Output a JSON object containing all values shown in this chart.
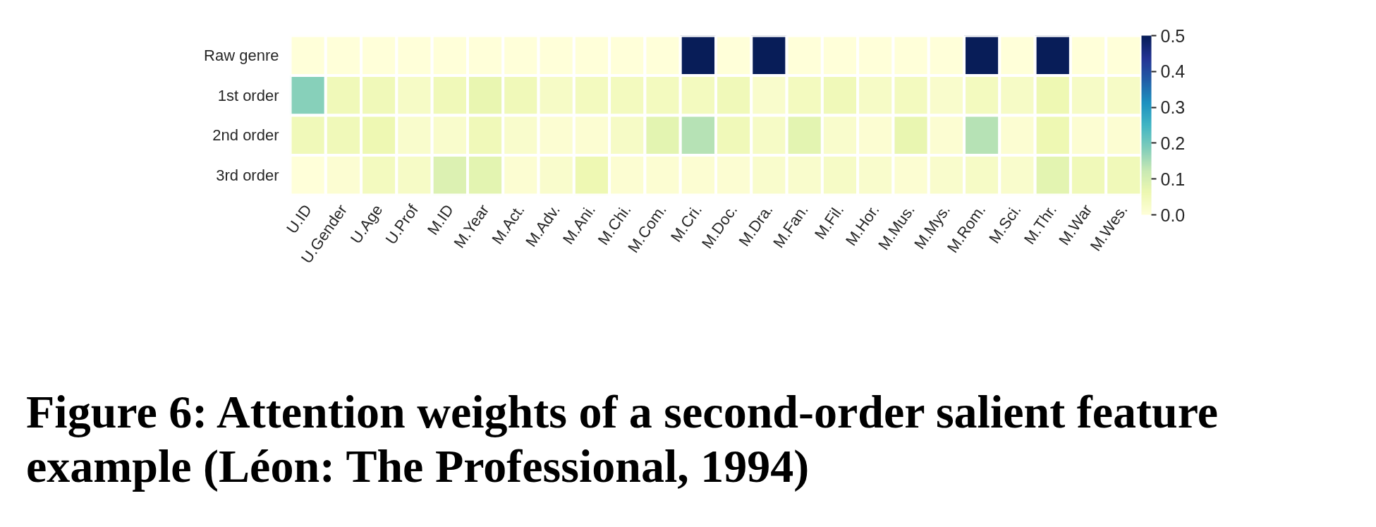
{
  "chart_data": {
    "type": "heatmap",
    "categories": [
      "U.ID",
      "U.Gender",
      "U.Age",
      "U.Prof",
      "M.ID",
      "M.Year",
      "M.Act.",
      "M.Adv.",
      "M.Ani.",
      "M.Chi.",
      "M.Com.",
      "M.Cri.",
      "M.Doc.",
      "M.Dra.",
      "M.Fan.",
      "M.Fil.",
      "M.Hor.",
      "M.Mus.",
      "M.Mys.",
      "M.Rom.",
      "M.Sci.",
      "M.Thr.",
      "M.War",
      "M.Wes."
    ],
    "y_categories": [
      "Raw genre",
      "1st order",
      "2nd order",
      "3rd order"
    ],
    "cells": [
      [
        0,
        0,
        0,
        0,
        0,
        0,
        0,
        0,
        0,
        0,
        0,
        0.5,
        0,
        0.5,
        0,
        0,
        0,
        0,
        0,
        0.5,
        0,
        0.5,
        0,
        0
      ],
      [
        0.18,
        0.05,
        0.05,
        0.03,
        0.05,
        0.07,
        0.05,
        0.03,
        0.04,
        0.04,
        0.04,
        0.04,
        0.05,
        0.02,
        0.04,
        0.05,
        0.03,
        0.04,
        0.02,
        0.04,
        0.03,
        0.06,
        0.03,
        0.03
      ],
      [
        0.05,
        0.05,
        0.06,
        0.02,
        0.02,
        0.05,
        0.02,
        0.01,
        0.01,
        0.03,
        0.08,
        0.14,
        0.05,
        0.03,
        0.08,
        0.02,
        0.01,
        0.07,
        0.01,
        0.14,
        0.01,
        0.06,
        0.01,
        0.01
      ],
      [
        0,
        0.01,
        0.04,
        0.03,
        0.09,
        0.08,
        0.01,
        0.02,
        0.06,
        0.01,
        0.01,
        0.01,
        0.01,
        0.02,
        0.02,
        0.03,
        0.02,
        0.01,
        0.02,
        0.03,
        0.02,
        0.08,
        0.05,
        0.05
      ]
    ],
    "clim": [
      0,
      0.5
    ],
    "cticks": [
      {
        "value": 0,
        "label": "0.0"
      },
      0.1,
      0.2,
      0.3,
      0.4,
      0.5
    ],
    "annotations": [
      "Figure 6: Attention weights of a second-order salient feature example (Léon: The Professional, 1994)"
    ]
  }
}
